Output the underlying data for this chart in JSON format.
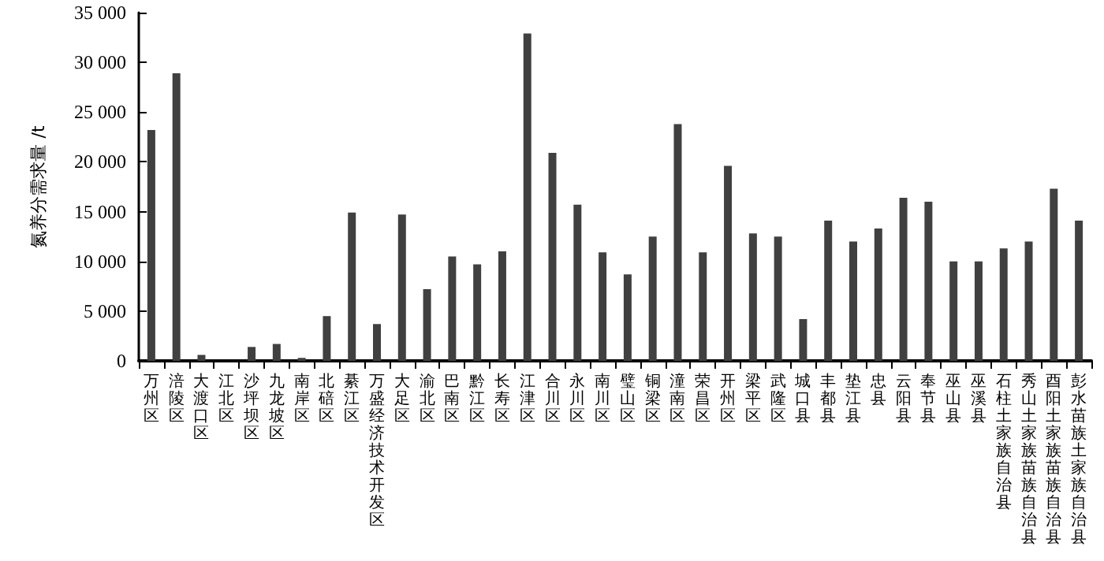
{
  "chart_data": {
    "type": "bar",
    "ylabel": "氮养分需求量 /t",
    "categories": [
      "万州区",
      "涪陵区",
      "大渡口区",
      "江北区",
      "沙坪坝区",
      "九龙坡区",
      "南岸区",
      "北碚区",
      "綦江区",
      "万盛经济技术开发区",
      "大足区",
      "渝北区",
      "巴南区",
      "黔江区",
      "长寿区",
      "江津区",
      "合川区",
      "永川区",
      "南川区",
      "璧山区",
      "铜梁区",
      "潼南区",
      "荣昌区",
      "开州区",
      "梁平区",
      "武隆区",
      "城口县",
      "丰都县",
      "垫江县",
      "忠县",
      "云阳县",
      "奉节县",
      "巫山县",
      "巫溪县",
      "石柱土家族自治县",
      "秀山土家族苗族自治县",
      "酉阳土家族苗族自治县",
      "彭水苗族土家族自治县"
    ],
    "values": [
      23200,
      28900,
      600,
      0,
      1400,
      1700,
      300,
      4500,
      14900,
      3700,
      14700,
      7200,
      10500,
      9700,
      11000,
      32900,
      20900,
      15700,
      10900,
      8700,
      12500,
      23800,
      10900,
      19600,
      12800,
      12500,
      4200,
      14100,
      12000,
      13300,
      16400,
      16000,
      10000,
      10000,
      11300,
      12000,
      17300,
      14100
    ],
    "color": "#404040",
    "ylim": [
      0,
      35000
    ],
    "yticks": [
      0,
      {
        "value": 5000,
        "label": "5 000"
      },
      {
        "value": 10000,
        "label": "10 000"
      },
      {
        "value": 15000,
        "label": "15 000"
      },
      {
        "value": 20000,
        "label": "20 000"
      },
      {
        "value": 25000,
        "label": "25 000"
      },
      {
        "value": 30000,
        "label": "30 000"
      },
      {
        "value": 35000,
        "label": "35 000"
      }
    ],
    "grid": false
  }
}
